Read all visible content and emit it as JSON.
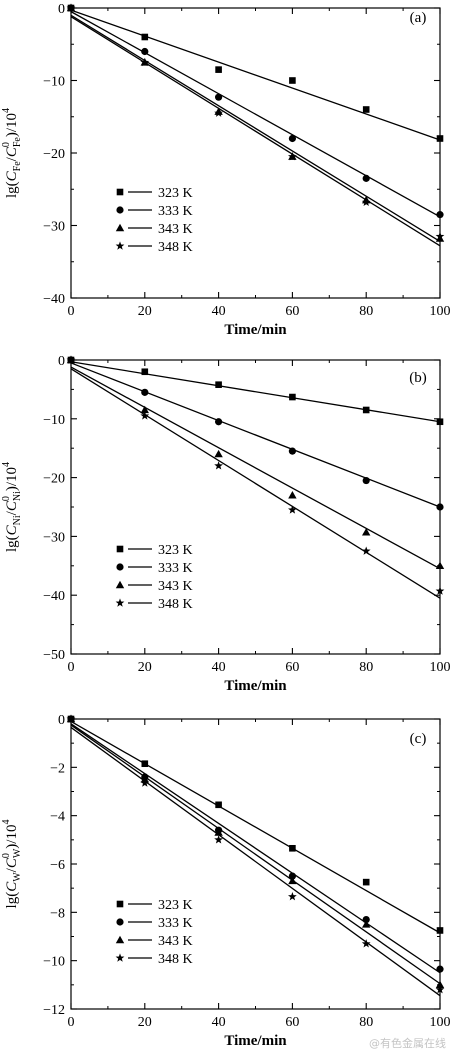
{
  "watermark": "@有色金属在线",
  "chart_data": [
    {
      "type": "scatter",
      "panel_label": "(a)",
      "xlabel": "Time/min",
      "ylabel": {
        "prefix": "lg(",
        "c": "C",
        "sub1": "Fe",
        "sep": "/",
        "c2": "C",
        "sup2": "0",
        "sub2": "Fe",
        "suffix": ")/10",
        "pow": "4"
      },
      "xlim": [
        0,
        100
      ],
      "ylim": [
        -40,
        0
      ],
      "xticks": [
        0,
        20,
        40,
        60,
        80,
        100
      ],
      "yticks": [
        0,
        -10,
        -20,
        -30,
        -40
      ],
      "legend_position": "lower-left",
      "series": [
        {
          "name": "323 K",
          "marker": "square",
          "x": [
            0,
            20,
            40,
            60,
            80,
            100
          ],
          "y": [
            0,
            -4.0,
            -8.5,
            -10.0,
            -14.0,
            -18.0
          ],
          "fit": [
            -0.3,
            -18.2
          ]
        },
        {
          "name": "333 K",
          "marker": "circle",
          "x": [
            0,
            20,
            40,
            60,
            80,
            100
          ],
          "y": [
            0,
            -6.0,
            -12.3,
            -18.0,
            -23.5,
            -28.5
          ],
          "fit": [
            -0.5,
            -28.8
          ]
        },
        {
          "name": "343 K",
          "marker": "triangle",
          "x": [
            0,
            20,
            40,
            60,
            80,
            100
          ],
          "y": [
            0,
            -7.5,
            -14.3,
            -20.5,
            -26.5,
            -31.8
          ],
          "fit": [
            -1.0,
            -32.2
          ]
        },
        {
          "name": "348 K",
          "marker": "star",
          "x": [
            0,
            20,
            40,
            60,
            80,
            100
          ],
          "y": [
            0,
            -7.5,
            -14.5,
            -20.5,
            -26.8,
            -31.5
          ],
          "fit": [
            -1.2,
            -32.8
          ]
        }
      ]
    },
    {
      "type": "scatter",
      "panel_label": "(b)",
      "xlabel": "Time/min",
      "ylabel": {
        "prefix": "lg(",
        "c": "C",
        "sub1": "Ni",
        "sep": "/",
        "c2": "C",
        "sup2": "0",
        "sub2": "Ni",
        "suffix": ")/10",
        "pow": "4"
      },
      "xlim": [
        0,
        100
      ],
      "ylim": [
        -50,
        0
      ],
      "xticks": [
        0,
        20,
        40,
        60,
        80,
        100
      ],
      "yticks": [
        0,
        -10,
        -20,
        -30,
        -40,
        -50
      ],
      "legend_position": "lower-left",
      "series": [
        {
          "name": "323 K",
          "marker": "square",
          "x": [
            0,
            20,
            40,
            60,
            80,
            100
          ],
          "y": [
            0,
            -2.0,
            -4.2,
            -6.3,
            -8.5,
            -10.5
          ],
          "fit": [
            -0.3,
            -10.5
          ]
        },
        {
          "name": "333 K",
          "marker": "circle",
          "x": [
            0,
            20,
            40,
            60,
            80,
            100
          ],
          "y": [
            0,
            -5.5,
            -10.5,
            -15.5,
            -20.5,
            -25.0
          ],
          "fit": [
            -0.5,
            -25.0
          ]
        },
        {
          "name": "343 K",
          "marker": "triangle",
          "x": [
            0,
            20,
            40,
            60,
            80,
            100
          ],
          "y": [
            0,
            -8.5,
            -16.0,
            -23.0,
            -29.3,
            -35.0
          ],
          "fit": [
            -1.2,
            -35.5
          ]
        },
        {
          "name": "348 K",
          "marker": "star",
          "x": [
            0,
            20,
            40,
            60,
            80,
            100
          ],
          "y": [
            0,
            -9.5,
            -18.0,
            -25.5,
            -32.5,
            -39.3
          ],
          "fit": [
            -1.5,
            -40.5
          ]
        }
      ]
    },
    {
      "type": "scatter",
      "panel_label": "(c)",
      "xlabel": "Time/min",
      "ylabel": {
        "prefix": "lg(",
        "c": "C",
        "sub1": "W",
        "sep": "/",
        "c2": "C",
        "sup2": "0",
        "sub2": "W",
        "suffix": ")/10",
        "pow": "4"
      },
      "xlim": [
        0,
        100
      ],
      "ylim": [
        -12,
        0
      ],
      "xticks": [
        0,
        20,
        40,
        60,
        80,
        100
      ],
      "yticks": [
        0,
        -2,
        -4,
        -6,
        -8,
        -10,
        -12
      ],
      "legend_position": "lower-left",
      "series": [
        {
          "name": "323 K",
          "marker": "square",
          "x": [
            0,
            20,
            40,
            60,
            80,
            100
          ],
          "y": [
            0,
            -1.85,
            -3.55,
            -5.35,
            -6.75,
            -8.75
          ],
          "fit": [
            -0.1,
            -8.85
          ]
        },
        {
          "name": "333 K",
          "marker": "circle",
          "x": [
            0,
            20,
            40,
            60,
            80,
            100
          ],
          "y": [
            0,
            -2.4,
            -4.6,
            -6.5,
            -8.3,
            -10.35
          ],
          "fit": [
            -0.2,
            -10.5
          ]
        },
        {
          "name": "343 K",
          "marker": "triangle",
          "x": [
            0,
            20,
            40,
            60,
            80,
            100
          ],
          "y": [
            0,
            -2.5,
            -4.7,
            -6.7,
            -8.5,
            -11.0
          ],
          "fit": [
            -0.25,
            -10.95
          ]
        },
        {
          "name": "348 K",
          "marker": "star",
          "x": [
            0,
            20,
            40,
            60,
            80,
            100
          ],
          "y": [
            0,
            -2.65,
            -5.0,
            -7.35,
            -9.3,
            -11.2
          ],
          "fit": [
            -0.35,
            -11.45
          ]
        }
      ]
    }
  ]
}
